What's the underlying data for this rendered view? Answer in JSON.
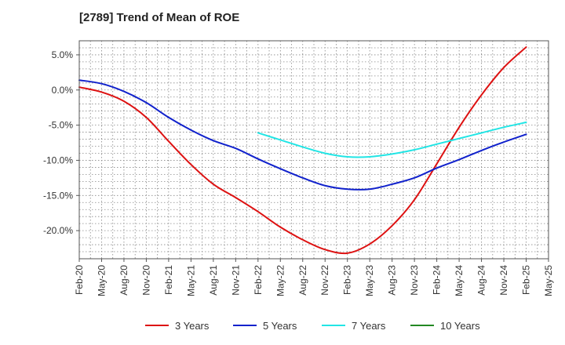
{
  "chart_data": {
    "type": "line",
    "title": "[2789]  Trend of Mean of ROE",
    "xlabel": "",
    "ylabel": "",
    "x_ticks": [
      "Feb-20",
      "May-20",
      "Aug-20",
      "Nov-20",
      "Feb-21",
      "May-21",
      "Aug-21",
      "Nov-21",
      "Feb-22",
      "May-22",
      "Aug-22",
      "Nov-22",
      "Feb-23",
      "May-23",
      "Aug-23",
      "Nov-23",
      "Feb-24",
      "May-24",
      "Aug-24",
      "Nov-24",
      "Feb-25",
      "May-25"
    ],
    "y_ticks": [
      5.0,
      0.0,
      -5.0,
      -10.0,
      -15.0,
      -20.0
    ],
    "y_tick_labels": [
      "5.0%",
      "0.0%",
      "-5.0%",
      "-10.0%",
      "-15.0%",
      "-20.0%"
    ],
    "ylim": [
      -24.0,
      7.0
    ],
    "grid": true,
    "legend_position": "bottom",
    "series": [
      {
        "name": "3 Years",
        "color": "#dd1111",
        "values": [
          0.4,
          -0.3,
          -1.6,
          -3.9,
          -7.3,
          -10.6,
          -13.4,
          -15.3,
          -17.3,
          -19.5,
          -21.3,
          -22.7,
          -23.2,
          -21.9,
          -19.3,
          -15.6,
          -10.5,
          -5.3,
          -0.7,
          3.2,
          6.1,
          null
        ]
      },
      {
        "name": "5 Years",
        "color": "#1122cc",
        "values": [
          1.4,
          0.9,
          -0.2,
          -1.8,
          -3.9,
          -5.7,
          -7.2,
          -8.3,
          -9.8,
          -11.2,
          -12.5,
          -13.6,
          -14.1,
          -14.1,
          -13.4,
          -12.5,
          -11.1,
          -9.9,
          -8.6,
          -7.4,
          -6.3,
          null
        ]
      },
      {
        "name": "7 Years",
        "color": "#22e5e5",
        "values": [
          null,
          null,
          null,
          null,
          null,
          null,
          null,
          null,
          -6.1,
          -7.1,
          -8.1,
          -9.0,
          -9.5,
          -9.5,
          -9.1,
          -8.5,
          -7.7,
          -6.9,
          -6.1,
          -5.3,
          -4.6,
          null
        ]
      },
      {
        "name": "10 Years",
        "color": "#228822",
        "values": [
          null,
          null,
          null,
          null,
          null,
          null,
          null,
          null,
          null,
          null,
          null,
          null,
          null,
          null,
          null,
          null,
          null,
          null,
          null,
          null,
          null,
          null
        ]
      }
    ]
  }
}
